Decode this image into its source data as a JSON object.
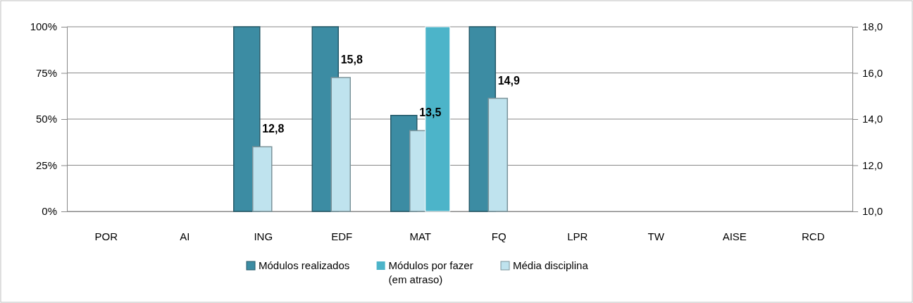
{
  "chart_data": {
    "type": "bar",
    "categories": [
      "POR",
      "AI",
      "ING",
      "EDF",
      "MAT",
      "FQ",
      "LPR",
      "TW",
      "AISE",
      "RCD"
    ],
    "series": [
      {
        "name": "Módulos realizados",
        "color": "#3c8ca3",
        "values": [
          null,
          null,
          100,
          100,
          52,
          100,
          null,
          null,
          null,
          null
        ]
      },
      {
        "name": "Média disciplina",
        "color": "#bfe3ee",
        "axis": "y2",
        "values": [
          null,
          null,
          12.8,
          15.8,
          13.5,
          14.9,
          null,
          null,
          null,
          null
        ],
        "value_labels": [
          null,
          null,
          "12,8",
          "15,8",
          "13,5",
          "14,9",
          null,
          null,
          null,
          null
        ]
      },
      {
        "name": "Módulos por fazer (em atraso)",
        "color": "#4cb4c9",
        "values": [
          null,
          null,
          null,
          null,
          100,
          null,
          null,
          null,
          null,
          null
        ]
      }
    ],
    "ylim": [
      0,
      100
    ],
    "yticks": [
      {
        "value": 0,
        "label": "0%"
      },
      {
        "value": 25,
        "label": "25%"
      },
      {
        "value": 50,
        "label": "50%"
      },
      {
        "value": 75,
        "label": "75%"
      },
      {
        "value": 100,
        "label": "100%"
      }
    ],
    "y2lim": [
      10,
      18
    ],
    "y2ticks": [
      {
        "value": 10,
        "label": "10,0"
      },
      {
        "value": 12,
        "label": "12,0"
      },
      {
        "value": 14,
        "label": "14,0"
      },
      {
        "value": 16,
        "label": "16,0"
      },
      {
        "value": 18,
        "label": "18,0"
      }
    ],
    "grid": "y",
    "legend": "bottom"
  }
}
